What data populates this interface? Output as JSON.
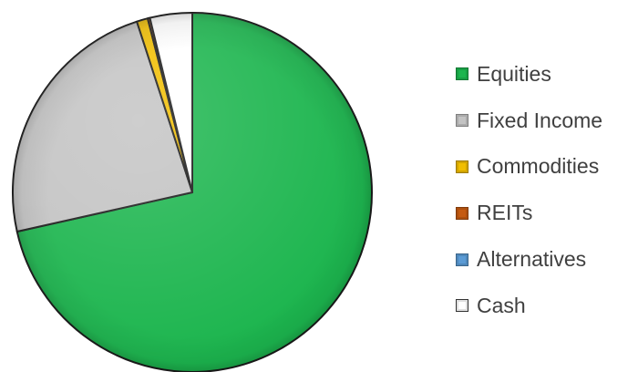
{
  "chart_data": {
    "type": "pie",
    "title": "",
    "categories": [
      "Equities",
      "Fixed Income",
      "Commodities",
      "REITs",
      "Alternatives",
      "Cash"
    ],
    "values": [
      71.5,
      23.5,
      1,
      0.2,
      0,
      3.8
    ],
    "colors": [
      "#1cb54e",
      "#c3c3c3",
      "#f1be00",
      "#c55a11",
      "#5b9bd5",
      "#ffffff"
    ],
    "legend_placement": "right",
    "start_angle": "top, clockwise"
  }
}
